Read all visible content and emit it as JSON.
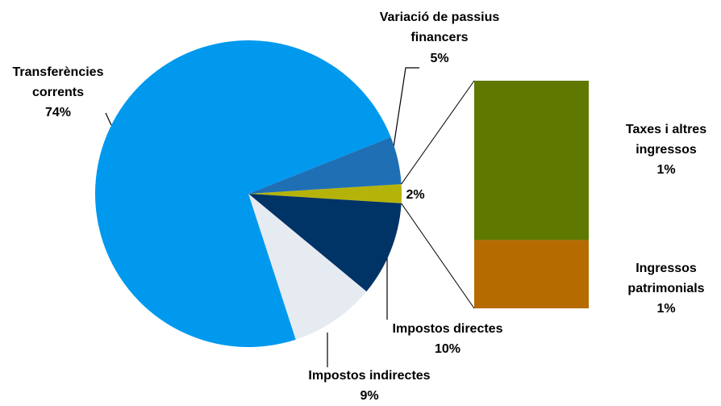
{
  "chart_data": {
    "type": "pie-of-bar",
    "categories": [
      null,
      "Impostos directes",
      "Impostos indirectes",
      "Transferències corrents",
      "Variació de passius financers"
    ],
    "values": [
      2,
      10,
      9,
      74,
      5
    ],
    "value_labels": [
      "2%",
      "10%",
      "9%",
      "74%",
      "5%"
    ],
    "colors": [
      "#b5b309",
      "#003366",
      "#e6ebf2",
      "#0099ee",
      "#1f6fb5"
    ],
    "bar": {
      "categories": [
        "Taxes i altres ingressos",
        "Ingressos patrimonials"
      ],
      "values": [
        1.4,
        0.6
      ],
      "value_labels": [
        "1%",
        "1%"
      ],
      "colors": [
        "#5f7800",
        "#b56b00"
      ]
    }
  }
}
